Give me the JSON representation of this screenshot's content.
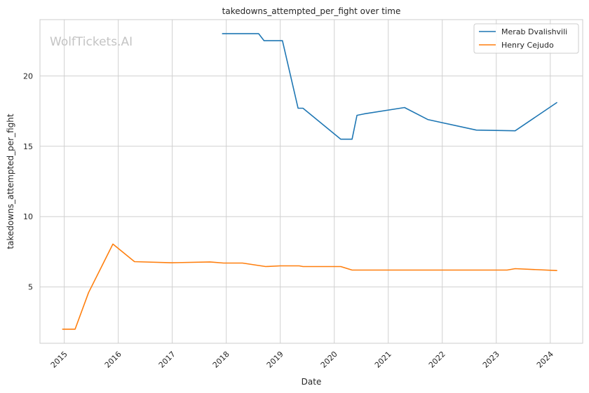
{
  "watermark": "WolfTickets.AI",
  "chart_data": {
    "type": "line",
    "title": "takedowns_attempted_per_fight over time",
    "xlabel": "Date",
    "ylabel": "takedowns_attempted_per_fight",
    "xlim": [
      2014.55,
      2024.6
    ],
    "ylim": [
      1.0,
      24.0
    ],
    "x_ticks": [
      2015,
      2016,
      2017,
      2018,
      2019,
      2020,
      2021,
      2022,
      2023,
      2024
    ],
    "x_tick_labels": [
      "2015",
      "2016",
      "2017",
      "2018",
      "2019",
      "2020",
      "2021",
      "2022",
      "2023",
      "2024"
    ],
    "y_ticks": [
      5,
      10,
      15,
      20
    ],
    "y_tick_labels": [
      "5",
      "10",
      "15",
      "20"
    ],
    "grid": true,
    "legend_position": "top-right",
    "series": [
      {
        "name": "Merab Dvalishvili",
        "color": "#1f77b4",
        "x": [
          2017.93,
          2018.6,
          2018.7,
          2019.04,
          2019.33,
          2019.42,
          2020.12,
          2020.33,
          2020.42,
          2020.55,
          2021.3,
          2021.73,
          2022.63,
          2023.35,
          2024.12
        ],
        "y": [
          23.0,
          23.0,
          22.5,
          22.5,
          17.7,
          17.7,
          15.5,
          15.5,
          17.2,
          17.3,
          17.75,
          16.9,
          16.15,
          16.1,
          18.1
        ]
      },
      {
        "name": "Henry Cejudo",
        "color": "#ff7f0e",
        "x": [
          2014.97,
          2015.2,
          2015.45,
          2015.9,
          2016.3,
          2016.98,
          2017.7,
          2017.95,
          2018.3,
          2018.73,
          2019.0,
          2019.35,
          2019.42,
          2020.12,
          2020.33,
          2021.0,
          2023.2,
          2023.35,
          2024.12
        ],
        "y": [
          2.0,
          2.0,
          4.6,
          8.05,
          6.8,
          6.72,
          6.78,
          6.7,
          6.7,
          6.45,
          6.5,
          6.5,
          6.45,
          6.45,
          6.2,
          6.2,
          6.2,
          6.3,
          6.17
        ]
      }
    ]
  }
}
